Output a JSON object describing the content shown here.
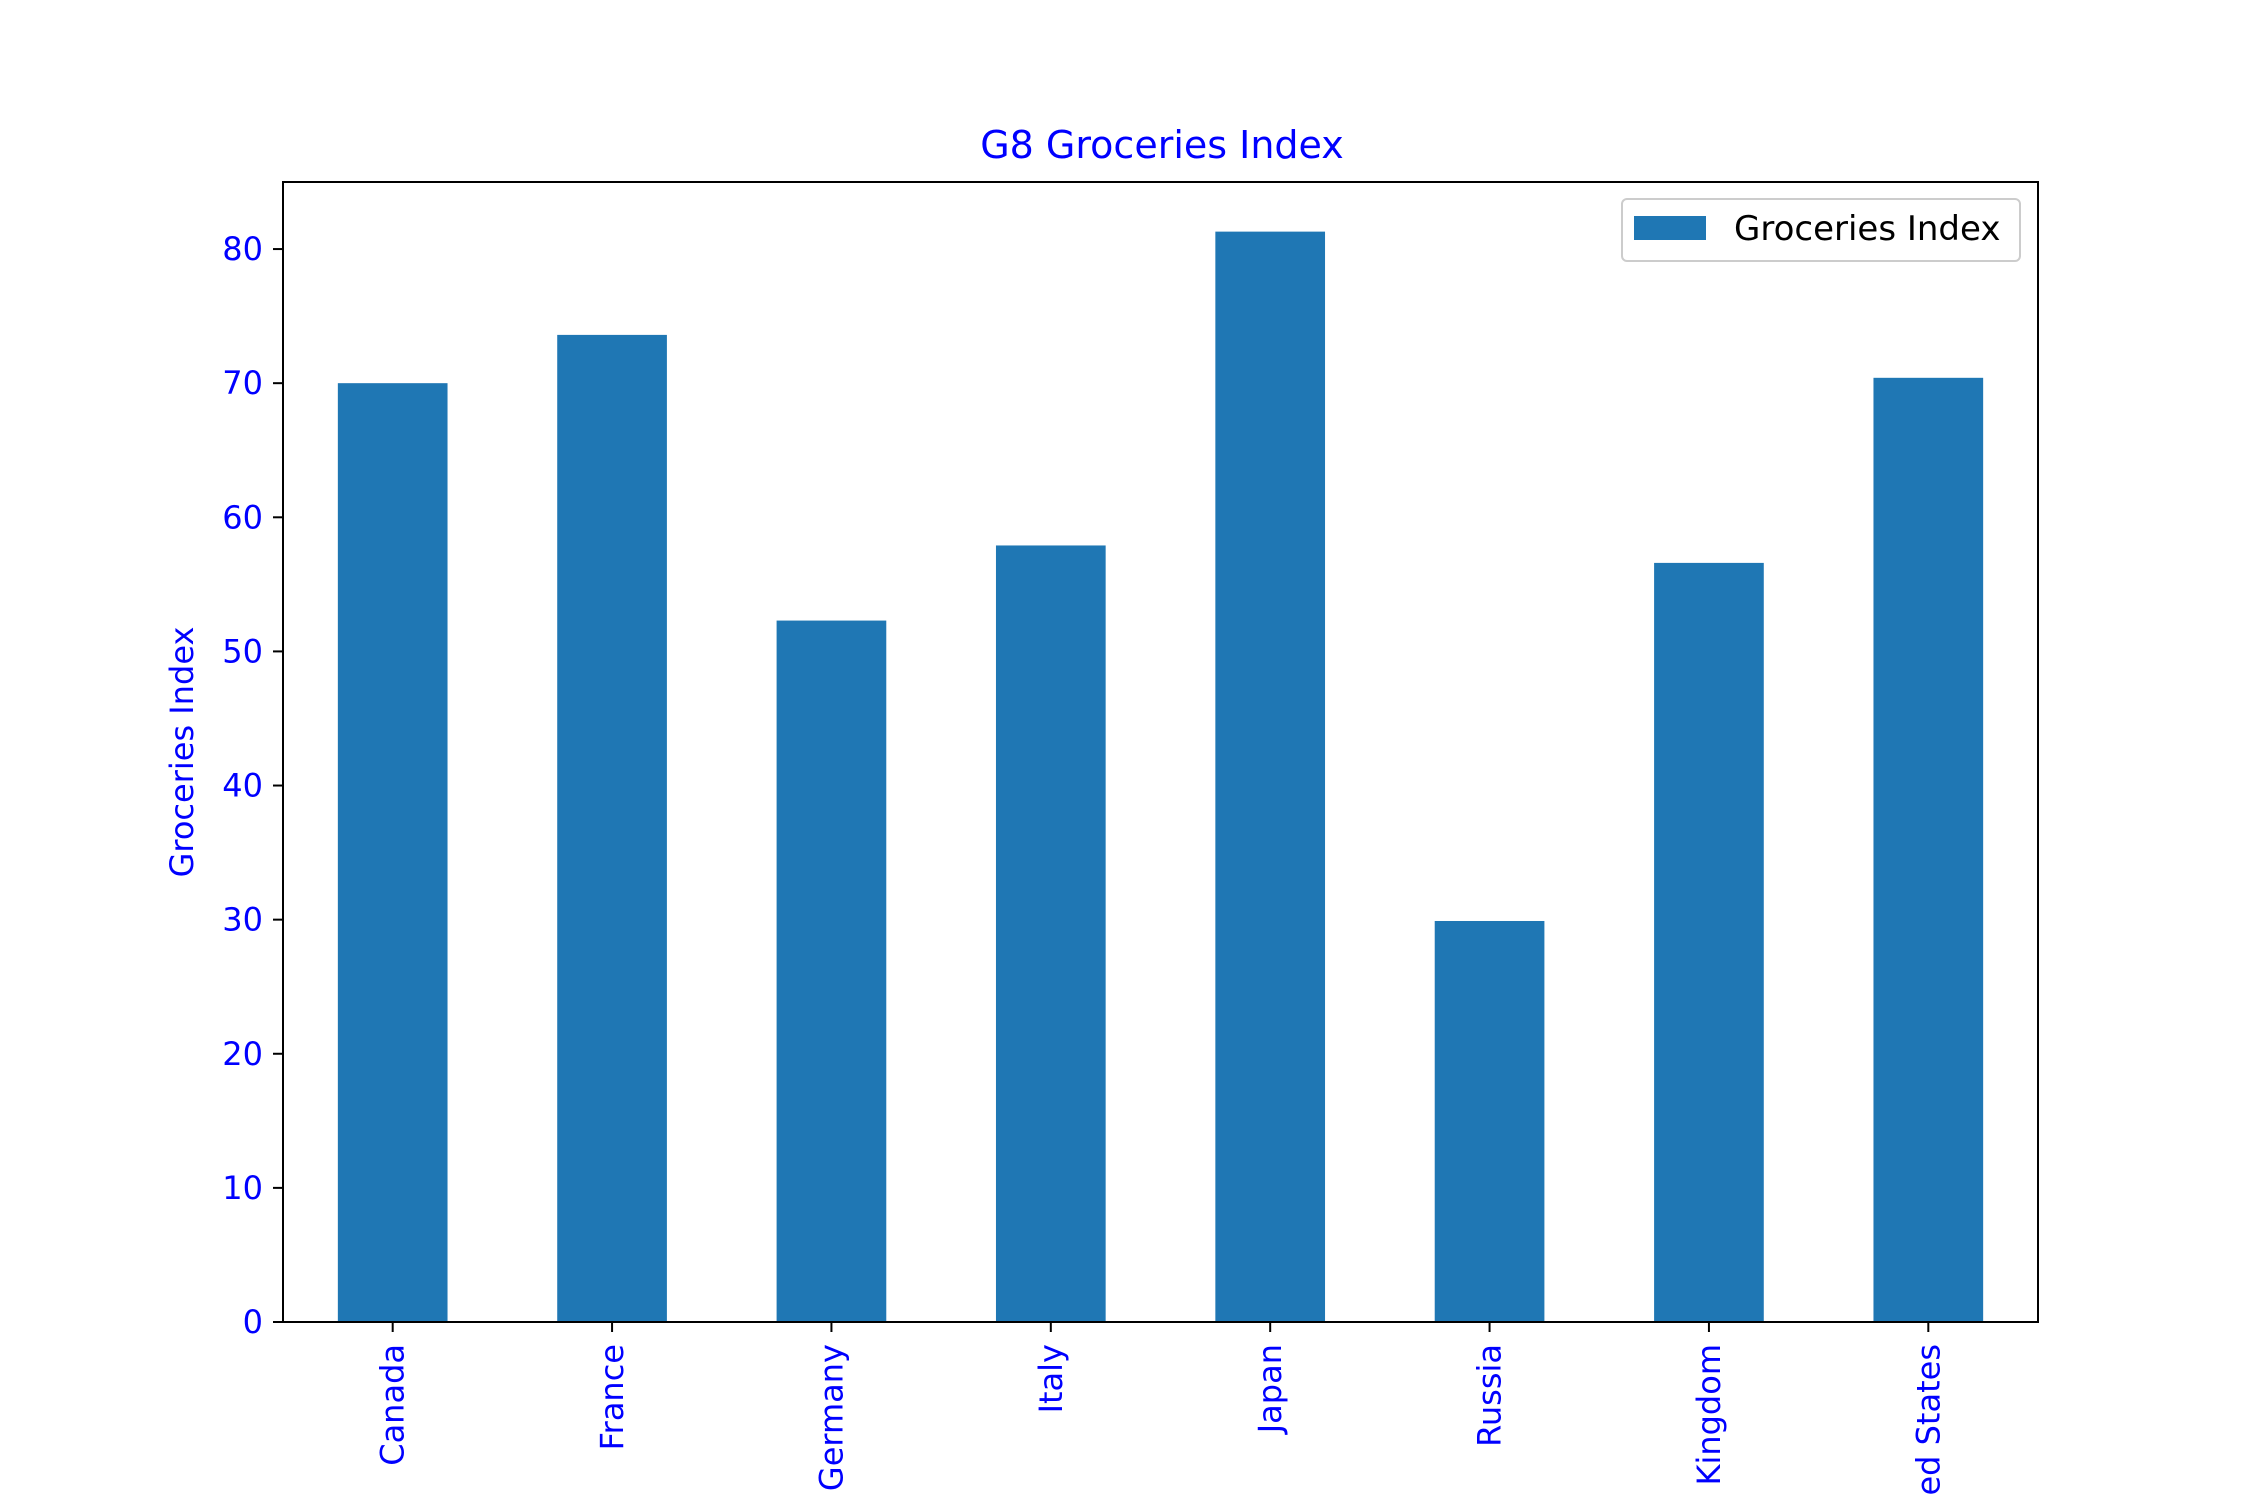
{
  "chart_data": {
    "type": "bar",
    "title": "G8 Groceries Index",
    "xlabel": "",
    "ylabel": "Groceries Index",
    "categories": [
      "Canada",
      "France",
      "Germany",
      "Italy",
      "Japan",
      "Russia",
      "Kingdom",
      "ed States"
    ],
    "series": [
      {
        "name": "Groceries Index",
        "values": [
          70.0,
          73.6,
          52.3,
          57.9,
          81.3,
          29.9,
          56.6,
          70.4
        ],
        "color": "#1f77b4"
      }
    ],
    "ylim": [
      0,
      85
    ],
    "yticks": [
      0,
      10,
      20,
      30,
      40,
      50,
      60,
      70,
      80
    ],
    "grid": false,
    "legend": {
      "position": "top-right",
      "entries": [
        "Groceries Index"
      ]
    },
    "text_color": "#0000ff",
    "xtick_rotation": "vertical"
  }
}
